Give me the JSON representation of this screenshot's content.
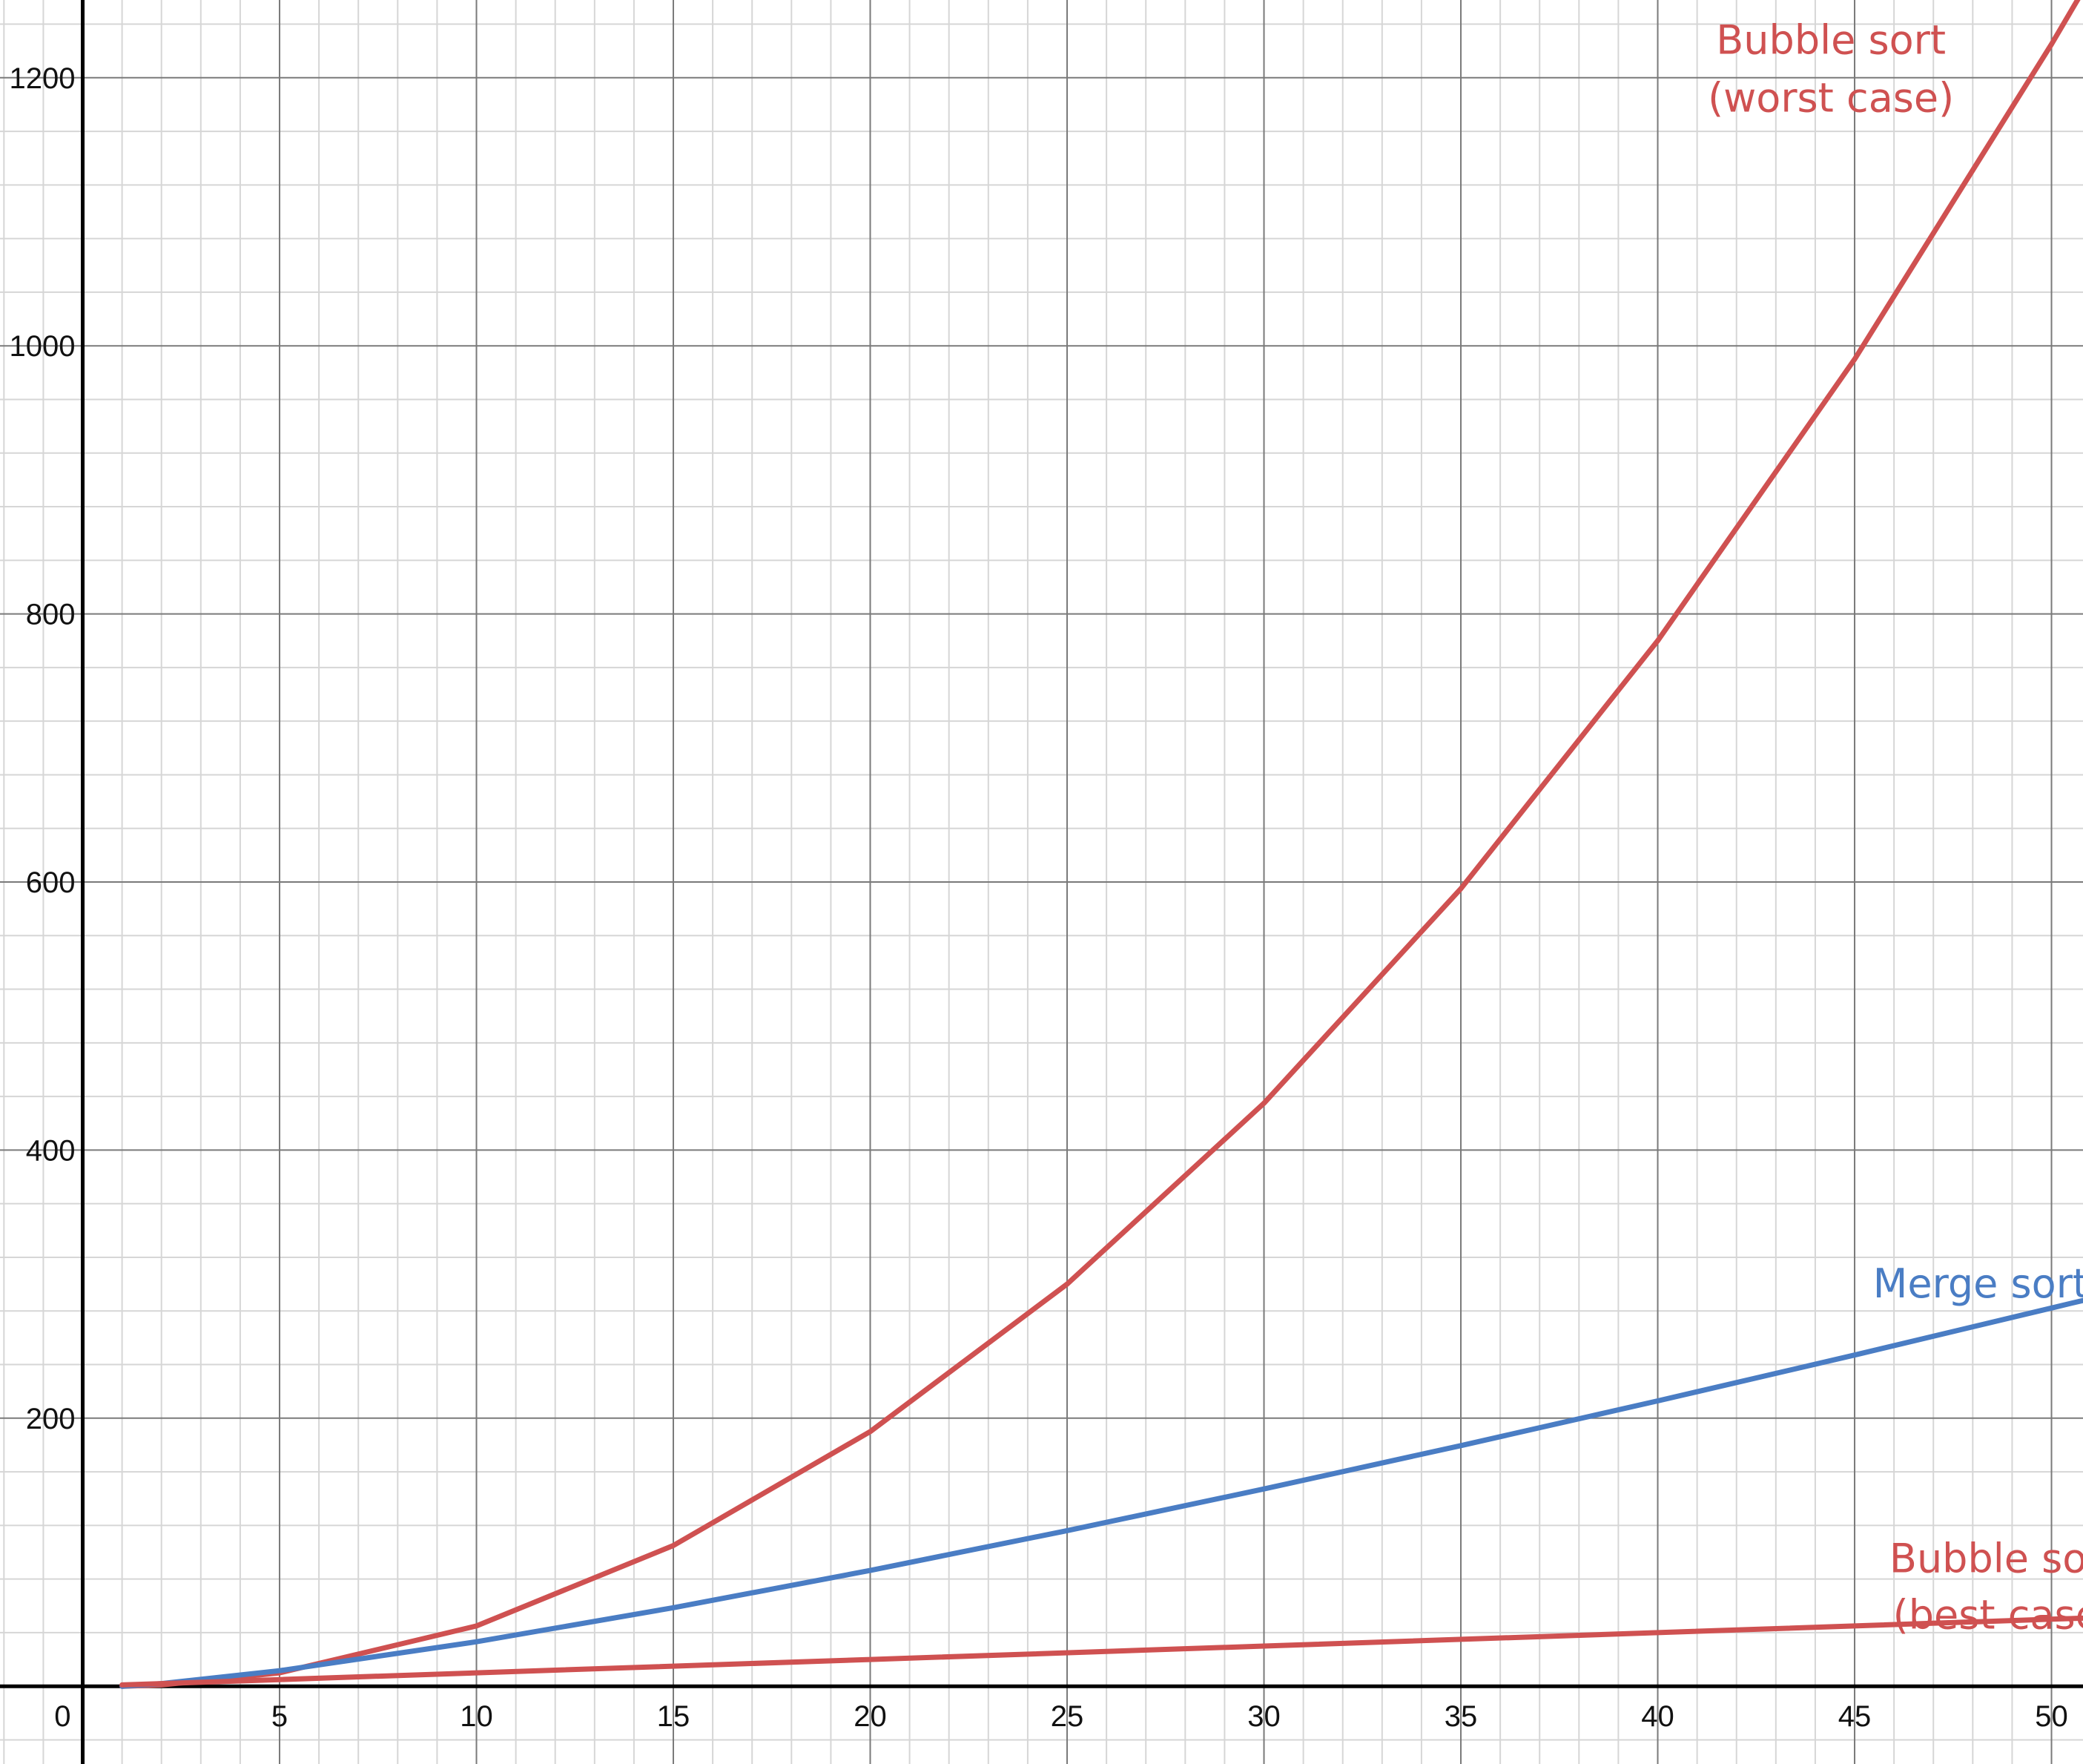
{
  "chart_data": {
    "type": "line",
    "title": "",
    "xlabel": "",
    "ylabel": "",
    "xlim": [
      -2.1,
      50.8
    ],
    "ylim": [
      -58,
      1258
    ],
    "x_ticks": [
      0,
      5,
      10,
      15,
      20,
      25,
      30,
      35,
      40,
      45,
      50
    ],
    "x_tick_labels": [
      "0",
      "5",
      "10",
      "15",
      "20",
      "25",
      "30",
      "35",
      "40",
      "45",
      "50"
    ],
    "y_ticks": [
      200,
      400,
      600,
      800,
      1000,
      1200
    ],
    "y_tick_labels": [
      "200",
      "400",
      "600",
      "800",
      "1000",
      "1200"
    ],
    "grid": true,
    "minor_grid": true,
    "legend": "inline labels at right end of each curve",
    "series": [
      {
        "name_lines": [
          "Bubble sort",
          "(worst case)"
        ],
        "color": "#cf5151",
        "x": [
          1,
          2,
          5,
          10,
          15,
          20,
          25,
          30,
          35,
          40,
          45,
          50,
          50.8
        ],
        "y": [
          0,
          1,
          10,
          45,
          105,
          190,
          300,
          435,
          595,
          780,
          990,
          1225,
          1265
        ]
      },
      {
        "name_lines": [
          "Merge sort"
        ],
        "color": "#4a7dc4",
        "x": [
          1,
          2,
          5,
          10,
          15,
          20,
          25,
          30,
          35,
          40,
          45,
          50,
          50.8
        ],
        "y": [
          0,
          2,
          11.6,
          33.2,
          58.6,
          86.4,
          116.1,
          147.2,
          179.5,
          212.9,
          247.1,
          282.2,
          287.8
        ]
      },
      {
        "name_lines": [
          "Bubble sort",
          "(best case)"
        ],
        "color": "#cf5151",
        "x": [
          1,
          5,
          10,
          20,
          30,
          40,
          50,
          50.8
        ],
        "y": [
          1,
          5,
          10,
          20,
          30,
          40,
          50,
          50.8
        ]
      }
    ]
  }
}
